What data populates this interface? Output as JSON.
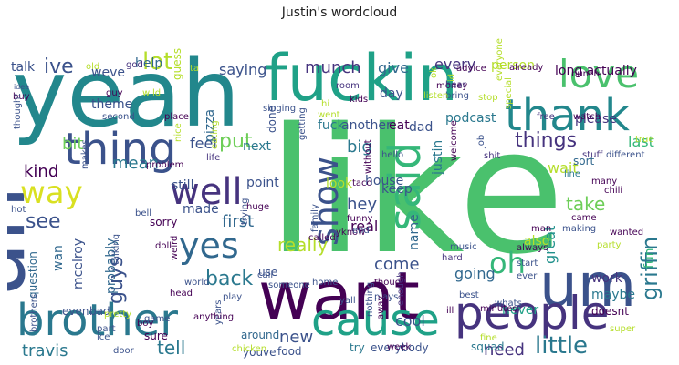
{
  "title": "Justin's wordcloud",
  "palette": {
    "yellow": "#d9e021",
    "lime": "#a0da39",
    "green": "#4ac16d",
    "teal_light": "#1fa187",
    "teal": "#22878c",
    "blue": "#365c8d",
    "indigo": "#46337e",
    "purple": "#440154"
  },
  "words": [
    {
      "text": "like",
      "color": "#4ac16d"
    },
    {
      "text": "yeah",
      "color": "#22878c"
    },
    {
      "text": "fuckin",
      "color": "#1fa187"
    },
    {
      "text": "uh",
      "color": "#3b528b"
    },
    {
      "text": "want",
      "color": "#440154"
    },
    {
      "text": "um",
      "color": "#3b528b"
    },
    {
      "text": "people",
      "color": "#46337e"
    },
    {
      "text": "brother",
      "color": "#2a788e"
    },
    {
      "text": "thing",
      "color": "#3b528b"
    },
    {
      "text": "thank",
      "color": "#22878c"
    },
    {
      "text": "cause",
      "color": "#1fa187"
    },
    {
      "text": "love",
      "color": "#4ac16d"
    },
    {
      "text": "well",
      "color": "#46337e"
    },
    {
      "text": "said",
      "color": "#35b779"
    },
    {
      "text": "show",
      "color": "#3b528b"
    },
    {
      "text": "yes",
      "color": "#31688e"
    },
    {
      "text": "way",
      "color": "#d9e021"
    },
    {
      "text": "oh",
      "color": "#35b779"
    },
    {
      "text": "really",
      "color": "#b5de2b"
    },
    {
      "text": "back",
      "color": "#2a788e"
    },
    {
      "text": "put",
      "color": "#6ece58"
    },
    {
      "text": "first",
      "color": "#31688e"
    },
    {
      "text": "hey",
      "color": "#3b528b"
    },
    {
      "text": "take",
      "color": "#6ece58"
    },
    {
      "text": "griffin",
      "color": "#2a788e"
    },
    {
      "text": "things",
      "color": "#46337e"
    },
    {
      "text": "munch",
      "color": "#46337e"
    },
    {
      "text": "lot",
      "color": "#b5de2b"
    },
    {
      "text": "ive",
      "color": "#3b528b"
    },
    {
      "text": "mean",
      "color": "#2a788e"
    },
    {
      "text": "see",
      "color": "#3b528b"
    },
    {
      "text": "kind",
      "color": "#440154"
    },
    {
      "text": "guys",
      "color": "#3b528b"
    },
    {
      "text": "come",
      "color": "#3b528b"
    },
    {
      "text": "going",
      "color": "#31688e"
    },
    {
      "text": "little",
      "color": "#2a788e"
    },
    {
      "text": "travis",
      "color": "#2a788e"
    },
    {
      "text": "tell",
      "color": "#2a788e"
    },
    {
      "text": "new",
      "color": "#3b528b"
    },
    {
      "text": "need",
      "color": "#46337e"
    },
    {
      "text": "cool",
      "color": "#3b528b"
    },
    {
      "text": "great",
      "color": "#21918c"
    },
    {
      "text": "big",
      "color": "#2a788e"
    },
    {
      "text": "real",
      "color": "#440154"
    },
    {
      "text": "saying",
      "color": "#3b528b"
    },
    {
      "text": "give",
      "color": "#31688e"
    },
    {
      "text": "every",
      "color": "#46337e"
    },
    {
      "text": "person",
      "color": "#b5de2b"
    },
    {
      "text": "long actually",
      "color": "#440154"
    },
    {
      "text": "day",
      "color": "#3b528b"
    },
    {
      "text": "eat",
      "color": "#440154"
    },
    {
      "text": "bit",
      "color": "#6ece58"
    },
    {
      "text": "feel",
      "color": "#3b528b"
    },
    {
      "text": "pizza",
      "color": "#31688e"
    },
    {
      "text": "theme",
      "color": "#3b528b"
    },
    {
      "text": "weve",
      "color": "#3b528b"
    },
    {
      "text": "help",
      "color": "#31688e"
    },
    {
      "text": "talk",
      "color": "#3b528b"
    },
    {
      "text": "dad",
      "color": "#3b528b"
    },
    {
      "text": "another",
      "color": "#3b528b"
    },
    {
      "text": "fuck",
      "color": "#2a788e"
    },
    {
      "text": "podcast",
      "color": "#2a788e"
    },
    {
      "text": "please",
      "color": "#46337e"
    },
    {
      "text": "last",
      "color": "#35b779"
    },
    {
      "text": "house",
      "color": "#3b528b"
    },
    {
      "text": "look",
      "color": "#b5de2b"
    },
    {
      "text": "keep",
      "color": "#3b528b"
    },
    {
      "text": "justin",
      "color": "#2a788e"
    },
    {
      "text": "wait",
      "color": "#b5de2b"
    },
    {
      "text": "sort",
      "color": "#31688e"
    },
    {
      "text": "next",
      "color": "#2a788e"
    },
    {
      "text": "point",
      "color": "#3b528b"
    },
    {
      "text": "still",
      "color": "#3b528b"
    },
    {
      "text": "made",
      "color": "#3b528b"
    },
    {
      "text": "sorry",
      "color": "#440154"
    },
    {
      "text": "probably",
      "color": "#31688e"
    },
    {
      "text": "mcelroy",
      "color": "#3b528b"
    },
    {
      "text": "question",
      "color": "#31688e"
    },
    {
      "text": "wan",
      "color": "#31688e"
    },
    {
      "text": "name",
      "color": "#31688e"
    },
    {
      "text": "fun",
      "color": "#35b779"
    },
    {
      "text": "work",
      "color": "#46337e"
    },
    {
      "text": "maybe",
      "color": "#2a788e"
    },
    {
      "text": "doesnt",
      "color": "#440154"
    },
    {
      "text": "never",
      "color": "#1fa187"
    },
    {
      "text": "also",
      "color": "#b5de2b"
    },
    {
      "text": "even",
      "color": "#3b528b"
    },
    {
      "text": "bad",
      "color": "#3b528b"
    },
    {
      "text": "around",
      "color": "#31688e"
    },
    {
      "text": "sure",
      "color": "#440154"
    },
    {
      "text": "youve",
      "color": "#3b528b"
    },
    {
      "text": "food",
      "color": "#3b528b"
    },
    {
      "text": "try",
      "color": "#2a788e"
    },
    {
      "text": "everybody",
      "color": "#3b528b"
    },
    {
      "text": "squad",
      "color": "#2a788e"
    },
    {
      "text": "use",
      "color": "#3b528b"
    },
    {
      "text": "done",
      "color": "#3b528b"
    },
    {
      "text": "god",
      "color": "#46337e"
    },
    {
      "text": "guess",
      "color": "#b5de2b"
    },
    {
      "text": "room",
      "color": "#46337e"
    },
    {
      "text": "kids",
      "color": "#440154"
    },
    {
      "text": "money",
      "color": "#440154"
    },
    {
      "text": "bring",
      "color": "#3b528b"
    },
    {
      "text": "hear",
      "color": "#46337e"
    },
    {
      "text": "free",
      "color": "#46337e"
    },
    {
      "text": "watch",
      "color": "#440154"
    },
    {
      "text": "stuff",
      "color": "#46337e"
    },
    {
      "text": "different",
      "color": "#3b528b"
    },
    {
      "text": "line",
      "color": "#2a788e"
    },
    {
      "text": "many",
      "color": "#440154"
    },
    {
      "text": "chili",
      "color": "#440154"
    },
    {
      "text": "came",
      "color": "#440154"
    },
    {
      "text": "wanted",
      "color": "#440154"
    },
    {
      "text": "start",
      "color": "#3b528b"
    },
    {
      "text": "ever",
      "color": "#3b528b"
    },
    {
      "text": "always",
      "color": "#440154"
    },
    {
      "text": "music",
      "color": "#3b528b"
    },
    {
      "text": "hard",
      "color": "#46337e"
    },
    {
      "text": "minutes",
      "color": "#440154"
    },
    {
      "text": "best",
      "color": "#3b528b"
    },
    {
      "text": "though",
      "color": "#440154"
    },
    {
      "text": "home",
      "color": "#3b528b"
    },
    {
      "text": "someone",
      "color": "#3b528b"
    },
    {
      "text": "world",
      "color": "#3b528b"
    },
    {
      "text": "play",
      "color": "#3b528b"
    },
    {
      "text": "years",
      "color": "#3b528b"
    },
    {
      "text": "anything",
      "color": "#440154"
    },
    {
      "text": "head",
      "color": "#440154"
    },
    {
      "text": "pretty",
      "color": "#b5de2b"
    },
    {
      "text": "boy",
      "color": "#440154"
    },
    {
      "text": "part",
      "color": "#3b528b"
    },
    {
      "text": "brothers",
      "color": "#3b528b"
    },
    {
      "text": "ice",
      "color": "#3b528b"
    },
    {
      "text": "door",
      "color": "#3b528b"
    },
    {
      "text": "chicken",
      "color": "#b5de2b"
    },
    {
      "text": "week",
      "color": "#440154"
    },
    {
      "text": "nothing",
      "color": "#3b528b"
    },
    {
      "text": "enough",
      "color": "#46337e"
    },
    {
      "text": "ill",
      "color": "#440154"
    },
    {
      "text": "fine",
      "color": "#b5de2b"
    },
    {
      "text": "party",
      "color": "#b5de2b"
    },
    {
      "text": "idea",
      "color": "#3b528b"
    },
    {
      "text": "buy",
      "color": "#440154"
    },
    {
      "text": "guy",
      "color": "#440154"
    },
    {
      "text": "wild",
      "color": "#b5de2b"
    },
    {
      "text": "second",
      "color": "#3b528b"
    },
    {
      "text": "place",
      "color": "#440154"
    },
    {
      "text": "nice",
      "color": "#b5de2b"
    },
    {
      "text": "life",
      "color": "#46337e"
    },
    {
      "text": "eating",
      "color": "#b5de2b"
    },
    {
      "text": "problem",
      "color": "#440154"
    },
    {
      "text": "makes",
      "color": "#3b528b"
    },
    {
      "text": "hot",
      "color": "#3b528b"
    },
    {
      "text": "bell",
      "color": "#3b528b"
    },
    {
      "text": "doll",
      "color": "#440154"
    },
    {
      "text": "weird",
      "color": "#440154"
    },
    {
      "text": "talking",
      "color": "#3b528b"
    },
    {
      "text": "huge",
      "color": "#440154"
    },
    {
      "text": "taco",
      "color": "#440154"
    },
    {
      "text": "funny",
      "color": "#440154"
    },
    {
      "text": "called",
      "color": "#440154"
    },
    {
      "text": "yknow",
      "color": "#440154"
    },
    {
      "text": "without",
      "color": "#440154"
    },
    {
      "text": "singing",
      "color": "#3b528b"
    },
    {
      "text": "listen",
      "color": "#b5de2b"
    },
    {
      "text": "stop",
      "color": "#b5de2b"
    },
    {
      "text": "hello",
      "color": "#3b528b"
    },
    {
      "text": "already",
      "color": "#440154"
    },
    {
      "text": "advice",
      "color": "#440154"
    },
    {
      "text": "bunch",
      "color": "#440154"
    },
    {
      "text": "special",
      "color": "#b5de2b"
    },
    {
      "text": "true",
      "color": "#b5de2b"
    },
    {
      "text": "job",
      "color": "#3b528b"
    },
    {
      "text": "shit",
      "color": "#46337e"
    },
    {
      "text": "man",
      "color": "#440154"
    },
    {
      "text": "trying",
      "color": "#3b528b"
    },
    {
      "text": "call",
      "color": "#3b528b"
    },
    {
      "text": "end",
      "color": "#3b528b"
    },
    {
      "text": "making",
      "color": "#3b528b"
    },
    {
      "text": "thought",
      "color": "#3b528b"
    },
    {
      "text": "went",
      "color": "#b5de2b"
    },
    {
      "text": "hi",
      "color": "#b5de2b"
    },
    {
      "text": "ta",
      "color": "#b5de2b"
    },
    {
      "text": "ok",
      "color": "#b5de2b"
    },
    {
      "text": "id",
      "color": "#b5de2b"
    },
    {
      "text": "everyone",
      "color": "#b5de2b"
    },
    {
      "text": "plays",
      "color": "#3b528b"
    },
    {
      "text": "whats",
      "color": "#3b528b"
    },
    {
      "text": "welcome",
      "color": "#440154"
    },
    {
      "text": "getting",
      "color": "#3b528b"
    },
    {
      "text": "family",
      "color": "#3b528b"
    },
    {
      "text": "game",
      "color": "#3b528b"
    },
    {
      "text": "away",
      "color": "#440154"
    },
    {
      "text": "super",
      "color": "#b5de2b"
    },
    {
      "text": "old",
      "color": "#b5de2b"
    },
    {
      "text": "yall",
      "color": "#3b528b"
    }
  ]
}
